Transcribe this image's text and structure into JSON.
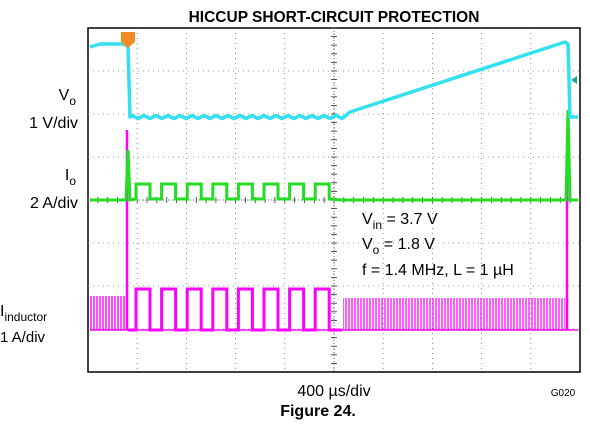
{
  "figure": {
    "title": "HICCUP SHORT-CIRCUIT PROTECTION",
    "channels": [
      {
        "name": {
          "main": "V",
          "sub": "o"
        },
        "scale": "1 V/div"
      },
      {
        "name": {
          "main": "I",
          "sub": "o"
        },
        "scale": "2 A/div"
      },
      {
        "name": {
          "main": "I",
          "sub": "inductor"
        },
        "scale": "1 A/div"
      }
    ],
    "conditions": [
      {
        "main": "V",
        "sub": "in",
        "rest": " = 3.7 V"
      },
      {
        "main": "V",
        "sub": "o",
        "rest": " = 1.8 V"
      },
      {
        "main": "f = 1.4 MHz, L = 1 µH",
        "sub": "",
        "rest": ""
      }
    ],
    "time_scale": "400 µs/div",
    "code": "G020",
    "caption": "Figure 24."
  }
}
